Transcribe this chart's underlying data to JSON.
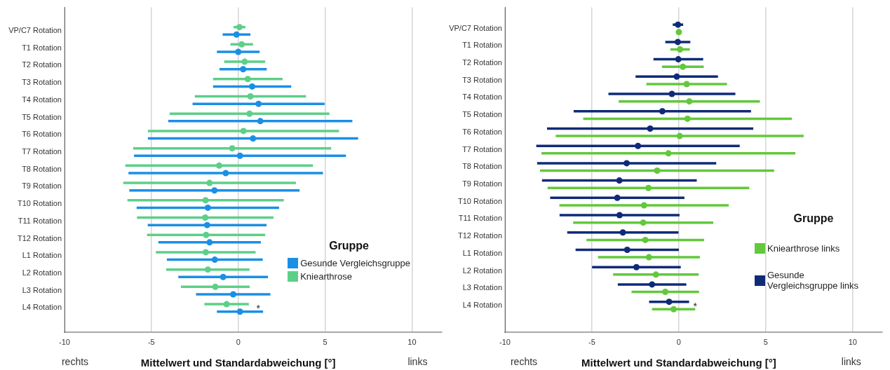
{
  "chart_data": [
    {
      "type": "scatter",
      "orientation": "horizontal",
      "marker": "circle",
      "grid": "x",
      "legend": "bottom right",
      "legend_title": "Gruppe",
      "xlabel": "Mittelwert und Standardabweichung [°]",
      "categories": [
        "VP/C7 Rotation",
        "T1 Rotation",
        "T2 Rotation",
        "T3 Rotation",
        "T4 Rotation",
        "T5 Rotation",
        "T6 Rotation",
        "T7 Rotation",
        "T8 Rotation",
        "T9 Rotation",
        "T10 Rotation",
        "T11 Rotation",
        "T12 Rotation",
        "L1 Rotation",
        "L2 Rotation",
        "L3 Rotation",
        "L4 Rotation"
      ],
      "xlim": [
        -10,
        11.7
      ],
      "xticks": [
        -10,
        -5,
        0,
        5,
        10
      ],
      "series": [
        {
          "name": "Gesunde Vergleichsgruppe",
          "color": "#1a8fe6",
          "values": [
            -0.1,
            0.0,
            0.28,
            0.8,
            1.17,
            1.27,
            0.85,
            0.1,
            -0.72,
            -1.37,
            -1.75,
            -1.79,
            -1.65,
            -1.35,
            -0.87,
            -0.29,
            0.1
          ],
          "errors": [
            0.8,
            1.23,
            1.36,
            2.25,
            3.8,
            5.3,
            6.05,
            6.1,
            5.6,
            4.9,
            4.1,
            3.42,
            2.95,
            2.76,
            2.58,
            2.14,
            1.33
          ]
        },
        {
          "name": "Kniearthrose",
          "color": "#5dcf88",
          "values": [
            0.07,
            0.2,
            0.37,
            0.55,
            0.7,
            0.65,
            0.3,
            -0.35,
            -1.1,
            -1.65,
            -1.88,
            -1.9,
            -1.85,
            -1.87,
            -1.75,
            -1.32,
            -0.67
          ],
          "errors": [
            0.34,
            0.65,
            1.18,
            2.0,
            3.2,
            4.6,
            5.5,
            5.7,
            5.4,
            4.97,
            4.5,
            3.93,
            3.4,
            2.87,
            2.4,
            1.98,
            1.28
          ]
        }
      ],
      "annotations": [
        "rechts",
        "links",
        {
          "text": "*",
          "x": 1.15,
          "y": "L4 Rotation"
        }
      ]
    },
    {
      "type": "scatter",
      "orientation": "horizontal",
      "marker": "circle",
      "grid": "x",
      "legend": "bottom right",
      "legend_title": "Gruppe",
      "xlabel": "Mittelwert und Standardabweichung [°]",
      "categories": [
        "VP/C7 Rotation",
        "T1 Rotation",
        "T2 Rotation",
        "T3 Rotation",
        "T4 Rotation",
        "T5 Rotation",
        "T6 Rotation",
        "T7 Rotation",
        "T8 Rotation",
        "T9 Rotation",
        "T10 Rotation",
        "T11 Rotation",
        "T12 Rotation",
        "L1 Rotation",
        "L2 Rotation",
        "L3 Rotation",
        "L4 Rotation"
      ],
      "xlim": [
        -10,
        11.7
      ],
      "xticks": [
        -10,
        -5,
        0,
        5,
        10
      ],
      "series": [
        {
          "name": "Kniearthrose links",
          "color": "#62c83c",
          "values": [
            0.0,
            0.07,
            0.23,
            0.45,
            0.6,
            0.5,
            0.05,
            -0.6,
            -1.25,
            -1.75,
            -2.0,
            -2.05,
            -1.93,
            -1.72,
            -1.32,
            -0.78,
            -0.3
          ],
          "errors": [
            0.15,
            0.56,
            1.2,
            2.32,
            4.06,
            6.0,
            7.13,
            7.3,
            6.73,
            5.8,
            4.87,
            4.03,
            3.38,
            2.93,
            2.46,
            1.94,
            1.24
          ]
        },
        {
          "name": "Gesunde Vergleichsgruppe links",
          "color": "#0f2a78",
          "values": [
            -0.05,
            -0.06,
            -0.03,
            -0.12,
            -0.4,
            -0.95,
            -1.65,
            -2.35,
            -3.0,
            -3.42,
            -3.54,
            -3.41,
            -3.22,
            -2.97,
            -2.44,
            -1.54,
            -0.56
          ],
          "errors": [
            0.3,
            0.72,
            1.43,
            2.37,
            3.65,
            5.1,
            5.93,
            5.85,
            5.15,
            4.45,
            3.86,
            3.45,
            3.2,
            2.97,
            2.55,
            1.97,
            1.15
          ]
        }
      ],
      "annotations": [
        "rechts",
        "links",
        {
          "text": "*",
          "x": 0.94,
          "y": "L4 Rotation"
        }
      ]
    }
  ]
}
